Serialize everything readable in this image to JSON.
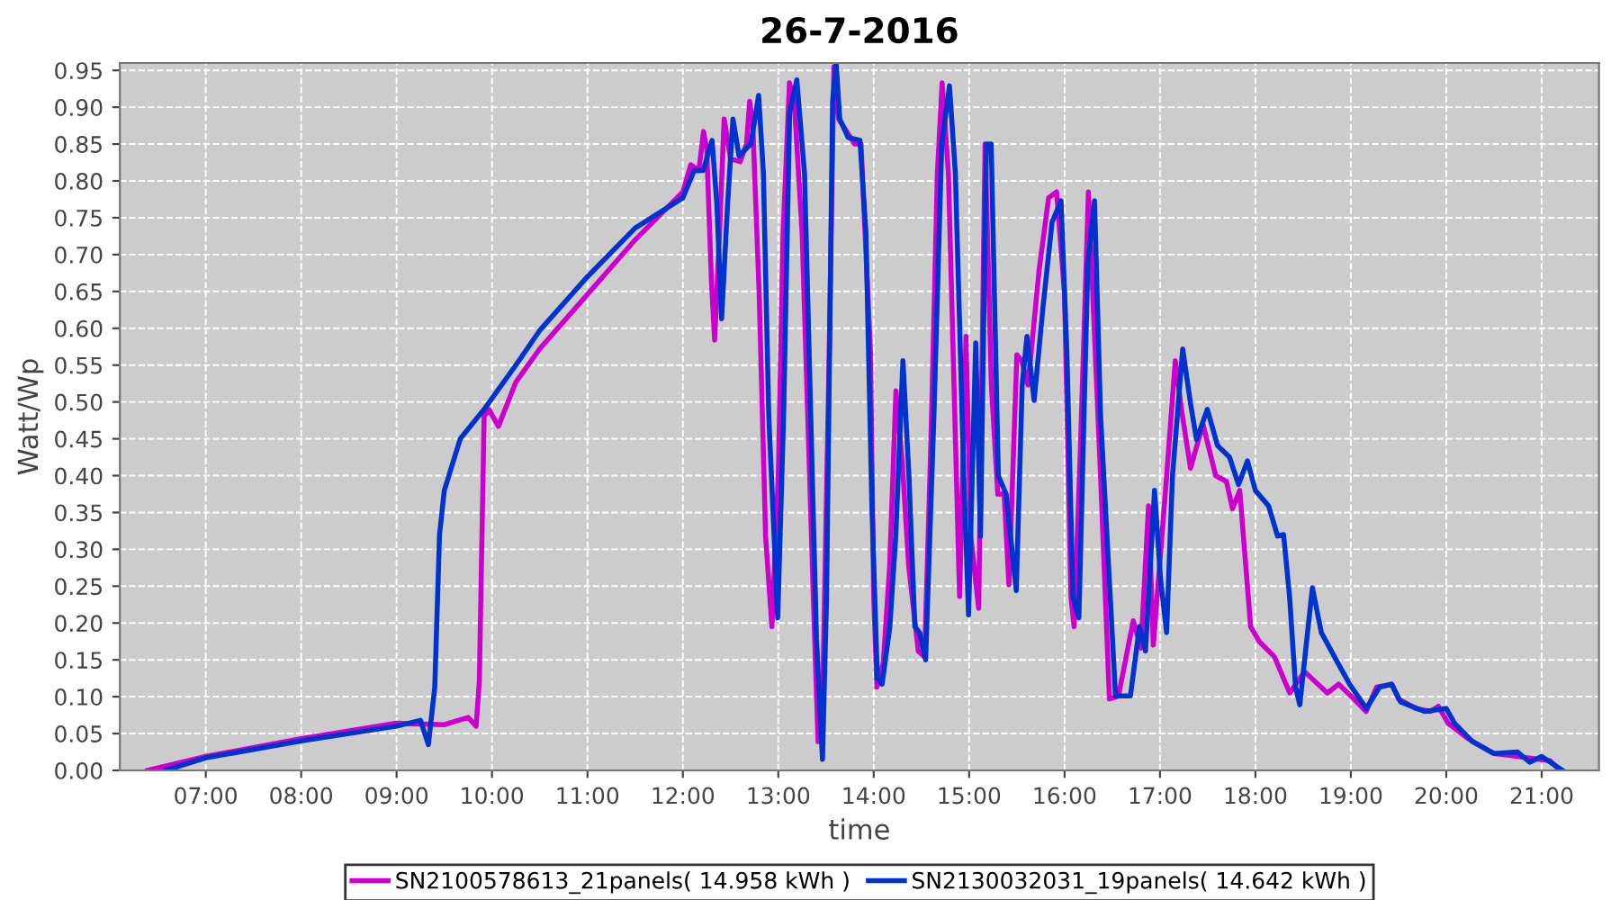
{
  "chart_data": {
    "type": "line",
    "title": "26-7-2016",
    "xlabel": "time",
    "ylabel": "Watt/Wp",
    "xlim": [
      6.1,
      21.6
    ],
    "ylim": [
      0,
      0.96
    ],
    "xticks": [
      {
        "value": 7,
        "label": "07:00"
      },
      {
        "value": 8,
        "label": "08:00"
      },
      {
        "value": 9,
        "label": "09:00"
      },
      {
        "value": 10,
        "label": "10:00"
      },
      {
        "value": 11,
        "label": "11:00"
      },
      {
        "value": 12,
        "label": "12:00"
      },
      {
        "value": 13,
        "label": "13:00"
      },
      {
        "value": 14,
        "label": "14:00"
      },
      {
        "value": 15,
        "label": "15:00"
      },
      {
        "value": 16,
        "label": "16:00"
      },
      {
        "value": 17,
        "label": "17:00"
      },
      {
        "value": 18,
        "label": "18:00"
      },
      {
        "value": 19,
        "label": "19:00"
      },
      {
        "value": 20,
        "label": "20:00"
      },
      {
        "value": 21,
        "label": "21:00"
      }
    ],
    "yticks": [
      {
        "value": 0,
        "label": "0.00"
      },
      {
        "value": 0.05,
        "label": "0.05"
      },
      {
        "value": 0.1,
        "label": "0.10"
      },
      {
        "value": 0.15,
        "label": "0.15"
      },
      {
        "value": 0.2,
        "label": "0.20"
      },
      {
        "value": 0.25,
        "label": "0.25"
      },
      {
        "value": 0.3,
        "label": "0.30"
      },
      {
        "value": 0.35,
        "label": "0.35"
      },
      {
        "value": 0.4,
        "label": "0.40"
      },
      {
        "value": 0.45,
        "label": "0.45"
      },
      {
        "value": 0.5,
        "label": "0.50"
      },
      {
        "value": 0.55,
        "label": "0.55"
      },
      {
        "value": 0.6,
        "label": "0.60"
      },
      {
        "value": 0.65,
        "label": "0.65"
      },
      {
        "value": 0.7,
        "label": "0.70"
      },
      {
        "value": 0.75,
        "label": "0.75"
      },
      {
        "value": 0.8,
        "label": "0.80"
      },
      {
        "value": 0.85,
        "label": "0.85"
      },
      {
        "value": 0.9,
        "label": "0.90"
      },
      {
        "value": 0.95,
        "label": "0.95"
      }
    ],
    "grid": true,
    "legend": "bottom",
    "marker": "none",
    "line_style": "solid",
    "series": [
      {
        "name": "SN2100578613_21panels( 14.958 kWh )",
        "color": "#cc00cc",
        "x": [
          6.39,
          7.0,
          8.0,
          9.0,
          9.5,
          9.75,
          9.833,
          9.867,
          9.917,
          9.967,
          10.067,
          10.25,
          10.5,
          11.0,
          11.5,
          12.0,
          12.083,
          12.167,
          12.217,
          12.25,
          12.3,
          12.333,
          12.383,
          12.433,
          12.5,
          12.6,
          12.667,
          12.7,
          12.733,
          12.8,
          12.867,
          12.933,
          13.0,
          13.05,
          13.117,
          13.167,
          13.25,
          13.367,
          13.417,
          13.467,
          13.533,
          13.583,
          13.633,
          13.717,
          13.8,
          13.867,
          13.967,
          14.0,
          14.033,
          14.1,
          14.167,
          14.233,
          14.3,
          14.367,
          14.467,
          14.533,
          14.6,
          14.667,
          14.717,
          14.783,
          14.833,
          14.9,
          14.967,
          15.017,
          15.1,
          15.167,
          15.233,
          15.3,
          15.367,
          15.417,
          15.5,
          15.55,
          15.617,
          15.733,
          15.833,
          15.917,
          16.0,
          16.067,
          16.1,
          16.167,
          16.25,
          16.377,
          16.47,
          16.565,
          16.72,
          16.8,
          16.88,
          16.93,
          17.07,
          17.16,
          17.225,
          17.32,
          17.45,
          17.584,
          17.697,
          17.76,
          17.836,
          17.95,
          18.04,
          18.2,
          18.36,
          18.515,
          18.754,
          18.873,
          19.0,
          19.16,
          19.27,
          19.43,
          19.5,
          19.68,
          19.836,
          19.917,
          20.02,
          20.23,
          20.5,
          20.75,
          20.92,
          21.09,
          21.19
        ],
        "values": [
          0,
          0.019,
          0.043,
          0.064,
          0.062,
          0.072,
          0.06,
          0.12,
          0.48,
          0.49,
          0.467,
          0.527,
          0.572,
          0.646,
          0.72,
          0.785,
          0.822,
          0.814,
          0.867,
          0.843,
          0.662,
          0.584,
          0.728,
          0.884,
          0.83,
          0.826,
          0.85,
          0.908,
          0.875,
          0.646,
          0.318,
          0.195,
          0.4,
          0.728,
          0.933,
          0.908,
          0.728,
          0.236,
          0.039,
          0.113,
          0.564,
          0.955,
          0.884,
          0.867,
          0.85,
          0.85,
          0.564,
          0.236,
          0.113,
          0.146,
          0.277,
          0.515,
          0.416,
          0.277,
          0.162,
          0.154,
          0.449,
          0.81,
          0.933,
          0.81,
          0.564,
          0.236,
          0.589,
          0.318,
          0.22,
          0.85,
          0.523,
          0.375,
          0.375,
          0.252,
          0.564,
          0.556,
          0.523,
          0.679,
          0.777,
          0.785,
          0.646,
          0.236,
          0.195,
          0.441,
          0.785,
          0.4,
          0.097,
          0.101,
          0.203,
          0.166,
          0.359,
          0.17,
          0.4,
          0.556,
          0.49,
          0.41,
          0.47,
          0.4,
          0.392,
          0.355,
          0.38,
          0.195,
          0.175,
          0.154,
          0.105,
          0.134,
          0.105,
          0.117,
          0.101,
          0.08,
          0.113,
          0.117,
          0.097,
          0.084,
          0.08,
          0.087,
          0.064,
          0.043,
          0.023,
          0.019,
          0.016,
          0.013,
          0
        ]
      },
      {
        "name": "SN2130032031_19panels( 14.642 kWh )",
        "color": "#0033cc",
        "x": [
          6.58,
          7,
          8,
          9,
          9.25,
          9.333,
          9.4,
          9.45,
          9.5,
          9.667,
          9.917,
          10.25,
          10.5,
          11,
          11.5,
          12.0,
          12.119,
          12.213,
          12.306,
          12.356,
          12.406,
          12.469,
          12.525,
          12.588,
          12.713,
          12.794,
          12.844,
          12.9,
          12.994,
          13.056,
          13.119,
          13.194,
          13.275,
          13.4,
          13.463,
          13.506,
          13.569,
          13.606,
          13.644,
          13.731,
          13.856,
          13.919,
          13.981,
          14.038,
          14.088,
          14.169,
          14.231,
          14.306,
          14.369,
          14.431,
          14.481,
          14.544,
          14.631,
          14.713,
          14.794,
          14.856,
          14.944,
          14.994,
          15.069,
          15.119,
          15.181,
          15.231,
          15.306,
          15.388,
          15.494,
          15.556,
          15.606,
          15.681,
          15.775,
          15.869,
          15.963,
          16.025,
          16.088,
          16.15,
          16.244,
          16.314,
          16.377,
          16.534,
          16.69,
          16.785,
          16.848,
          16.943,
          17.006,
          17.069,
          17.131,
          17.238,
          17.32,
          17.383,
          17.496,
          17.603,
          17.729,
          17.823,
          17.917,
          17.999,
          18.138,
          18.232,
          18.295,
          18.358,
          18.421,
          18.465,
          18.597,
          18.691,
          18.829,
          18.987,
          19.163,
          19.301,
          19.427,
          19.521,
          19.773,
          19.999,
          20.087,
          20.276,
          20.496,
          20.748,
          20.874,
          21.0,
          21.219
        ],
        "values": [
          0,
          0.017,
          0.04,
          0.06,
          0.068,
          0.035,
          0.113,
          0.32,
          0.38,
          0.45,
          0.49,
          0.55,
          0.597,
          0.67,
          0.736,
          0.777,
          0.814,
          0.814,
          0.855,
          0.769,
          0.613,
          0.769,
          0.884,
          0.834,
          0.85,
          0.916,
          0.81,
          0.482,
          0.207,
          0.482,
          0.892,
          0.937,
          0.81,
          0.179,
          0.015,
          0.236,
          0.908,
          0.96,
          0.884,
          0.859,
          0.855,
          0.728,
          0.359,
          0.125,
          0.117,
          0.195,
          0.318,
          0.556,
          0.4,
          0.195,
          0.187,
          0.15,
          0.482,
          0.85,
          0.929,
          0.81,
          0.4,
          0.211,
          0.58,
          0.318,
          0.85,
          0.85,
          0.4,
          0.375,
          0.244,
          0.523,
          0.589,
          0.502,
          0.63,
          0.744,
          0.773,
          0.564,
          0.236,
          0.207,
          0.687,
          0.773,
          0.482,
          0.101,
          0.101,
          0.195,
          0.162,
          0.38,
          0.26,
          0.187,
          0.4,
          0.572,
          0.498,
          0.449,
          0.49,
          0.441,
          0.425,
          0.388,
          0.42,
          0.38,
          0.359,
          0.318,
          0.32,
          0.236,
          0.113,
          0.089,
          0.248,
          0.187,
          0.154,
          0.117,
          0.084,
          0.113,
          0.117,
          0.093,
          0.08,
          0.084,
          0.064,
          0.039,
          0.023,
          0.025,
          0.011,
          0.019,
          0
        ]
      }
    ]
  }
}
